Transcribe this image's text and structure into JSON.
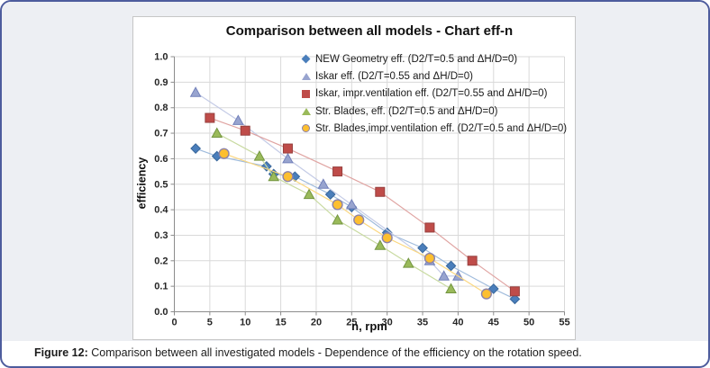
{
  "caption": {
    "prefix": "Figure 12:",
    "text": " Comparison between all investigated models - Dependence of the efficiency on the rotation speed."
  },
  "frame": {
    "border_color": "#4d5c9d",
    "background_color": "#edeff3",
    "chart_background": "#ffffff"
  },
  "chart_data": {
    "type": "scatter",
    "title": "Comparison between all models - Chart eff-n",
    "xlabel": "n, rpm",
    "ylabel": "efficiency",
    "xlim": [
      0,
      55
    ],
    "ylim": [
      0.0,
      1.0
    ],
    "x_ticks": [
      0,
      5,
      10,
      15,
      20,
      25,
      30,
      35,
      40,
      45,
      50,
      55
    ],
    "y_ticks": [
      "0.0",
      "0.1",
      "0.2",
      "0.3",
      "0.4",
      "0.5",
      "0.6",
      "0.7",
      "0.8",
      "0.9",
      "1.0"
    ],
    "grid": true,
    "gridline_color": "#d9d9d9",
    "axis_color": "#8c8c8c",
    "legend_position": "top-right-inside",
    "series": [
      {
        "name": "NEW Geometry eff. (D2/T=0.5 and ΔH/D=0)",
        "marker": "diamond",
        "color": "#4a7ebb",
        "edge_color": "#3a689c",
        "line_color": "#9fbbdc",
        "points": [
          [
            3,
            0.64
          ],
          [
            6,
            0.61
          ],
          [
            13,
            0.57
          ],
          [
            14,
            0.54
          ],
          [
            17,
            0.53
          ],
          [
            22,
            0.46
          ],
          [
            25,
            0.41
          ],
          [
            30,
            0.31
          ],
          [
            35,
            0.25
          ],
          [
            39,
            0.18
          ],
          [
            45,
            0.09
          ],
          [
            48,
            0.05
          ]
        ]
      },
      {
        "name": "Iskar eff. (D2/T=0.55 and ΔH/D=0)",
        "marker": "triangle",
        "color": "#98a4cf",
        "edge_color": "#7280ba",
        "line_color": "#c4cbe6",
        "points": [
          [
            3,
            0.86
          ],
          [
            9,
            0.75
          ],
          [
            16,
            0.6
          ],
          [
            21,
            0.5
          ],
          [
            25,
            0.42
          ],
          [
            36,
            0.2
          ],
          [
            38,
            0.14
          ],
          [
            40,
            0.14
          ]
        ]
      },
      {
        "name": "Iskar, impr.ventilation eff. (D2/T=0.55 and ΔH/D=0)",
        "marker": "square",
        "color": "#bf4c49",
        "edge_color": "#97403e",
        "line_color": "#e0a4a2",
        "points": [
          [
            5,
            0.76
          ],
          [
            10,
            0.71
          ],
          [
            16,
            0.64
          ],
          [
            23,
            0.55
          ],
          [
            29,
            0.47
          ],
          [
            36,
            0.33
          ],
          [
            42,
            0.2
          ],
          [
            48,
            0.08
          ]
        ]
      },
      {
        "name": "Str. Blades, eff. (D2/T=0.5 and ΔH/D=0)",
        "marker": "triangle",
        "color": "#9aba5a",
        "edge_color": "#739540",
        "line_color": "#c8daa0",
        "points": [
          [
            6,
            0.7
          ],
          [
            12,
            0.61
          ],
          [
            14,
            0.53
          ],
          [
            19,
            0.46
          ],
          [
            23,
            0.36
          ],
          [
            29,
            0.26
          ],
          [
            33,
            0.19
          ],
          [
            39,
            0.09
          ]
        ]
      },
      {
        "name": "Str. Blades,impr.ventilation eff. (D2/T=0.5 and ΔH/D=0)",
        "marker": "circle",
        "color": "#fdbf2f",
        "edge_color": "#8d82a7",
        "line_color": "#fbd77f",
        "points": [
          [
            7,
            0.62
          ],
          [
            16,
            0.53
          ],
          [
            23,
            0.42
          ],
          [
            26,
            0.36
          ],
          [
            30,
            0.29
          ],
          [
            36,
            0.21
          ],
          [
            44,
            0.07
          ]
        ]
      }
    ]
  }
}
